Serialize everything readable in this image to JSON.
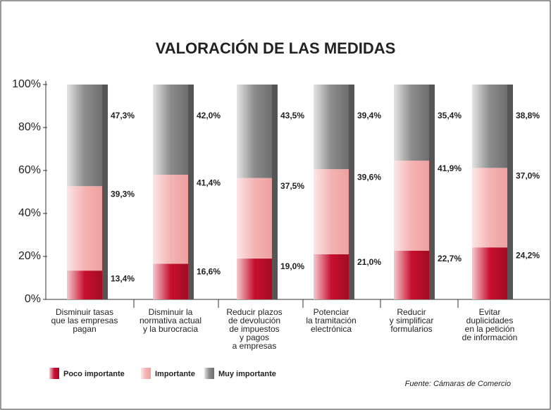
{
  "chart_data": {
    "type": "stacked_bar",
    "title": "VALORACIÓN DE LAS MEDIDAS",
    "categories": [
      "Disminuir tasas\nque las empresas\npagan",
      "Disminuir la\nnormativa actual\ny la burocracia",
      "Reducir plazos\nde devolución\nde impuestos\ny pagos\na empresas",
      "Potenciar\nla tramitación\nelectrónica",
      "Reducir\ny simplificar\nformularios",
      "Evitar\nduplicidades\nen la petición\nde información"
    ],
    "series": [
      {
        "name": "Poco importante",
        "color": "#c8102e",
        "values": [
          13.4,
          16.6,
          19.0,
          21.0,
          22.7,
          24.2
        ],
        "value_labels": [
          "13,4%",
          "16,6%",
          "19,0%",
          "21,0%",
          "22,7%",
          "24,2%"
        ]
      },
      {
        "name": "Importante",
        "color": "#f3b3b3",
        "values": [
          39.3,
          41.4,
          37.5,
          39.6,
          41.9,
          37.0
        ],
        "value_labels": [
          "39,3%",
          "41,4%",
          "37,5%",
          "39,6%",
          "41,9%",
          "37,0%"
        ]
      },
      {
        "name": "Muy importante",
        "color": "#8c8c8c",
        "values": [
          47.3,
          42.0,
          43.5,
          39.4,
          35.4,
          38.8
        ],
        "value_labels": [
          "47,3%",
          "42,0%",
          "43,5%",
          "39,4%",
          "35,4%",
          "38,8%"
        ]
      }
    ],
    "ylim": [
      0,
      100
    ],
    "yticks": [
      {
        "value": 0,
        "label": "0%"
      },
      {
        "value": 20,
        "label": "20%"
      },
      {
        "value": 40,
        "label": "40%"
      },
      {
        "value": 60,
        "label": "60%"
      },
      {
        "value": 80,
        "label": "80%"
      },
      {
        "value": 100,
        "label": "100%"
      }
    ],
    "source": "Fuente: Cámaras de Comercio"
  }
}
